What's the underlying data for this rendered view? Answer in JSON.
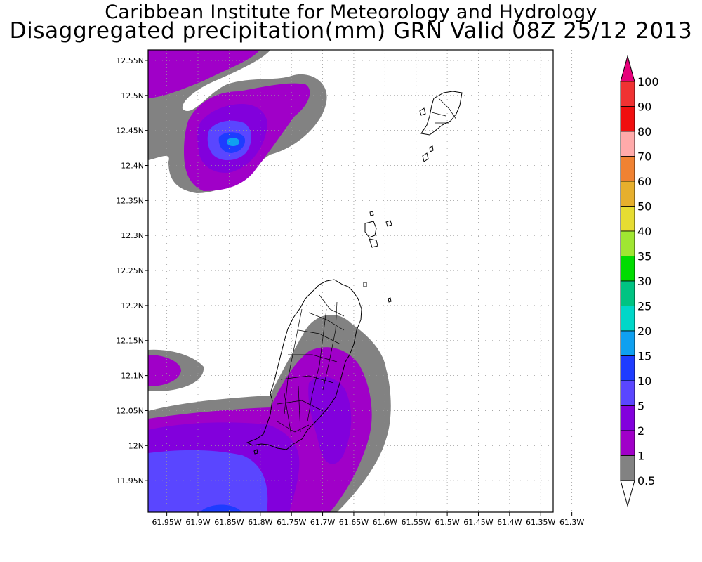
{
  "title_line1": "Caribbean Institute for Meteorology and Hydrology",
  "title_line2": "Disaggregated precipitation(mm) GRN Valid 08Z 25/12 2013",
  "axes": {
    "lon_ticks": [
      "61.95W",
      "61.9W",
      "61.85W",
      "61.8W",
      "61.75W",
      "61.7W",
      "61.65W",
      "61.6W",
      "61.55W",
      "61.5W",
      "61.45W",
      "61.4W",
      "61.35W",
      "61.3W"
    ],
    "lon_values": [
      -61.95,
      -61.9,
      -61.85,
      -61.8,
      -61.75,
      -61.7,
      -61.65,
      -61.6,
      -61.55,
      -61.5,
      -61.45,
      -61.4,
      -61.35,
      -61.3
    ],
    "lat_ticks": [
      "12.55N",
      "12.5N",
      "12.45N",
      "12.4N",
      "12.35N",
      "12.3N",
      "12.25N",
      "12.2N",
      "12.15N",
      "12.1N",
      "12.05N",
      "12N",
      "11.95N"
    ],
    "lat_values": [
      12.55,
      12.5,
      12.45,
      12.4,
      12.35,
      12.3,
      12.25,
      12.2,
      12.15,
      12.1,
      12.05,
      12.0,
      11.95
    ],
    "lon_range": [
      -61.98,
      -61.33
    ],
    "lat_range": [
      11.905,
      12.565
    ],
    "grid": "dotted"
  },
  "legend": {
    "placement": "right",
    "levels": [
      "100",
      "90",
      "80",
      "70",
      "60",
      "50",
      "40",
      "35",
      "30",
      "25",
      "20",
      "15",
      "10",
      "5",
      "2",
      "1",
      "0.5"
    ],
    "colors": [
      "#f03232",
      "#f00f0f",
      "#ffaaaa",
      "#f08232",
      "#e6af2d",
      "#e6dc32",
      "#a0e632",
      "#00dc00",
      "#00c382",
      "#00d7c8",
      "#0fa0f0",
      "#1e3cff",
      "#5a46ff",
      "#8200dc",
      "#a000c8",
      "#828282"
    ],
    "top_arrow_color": "#e6007a",
    "bottom_arrow_color": "#ffffff"
  }
}
